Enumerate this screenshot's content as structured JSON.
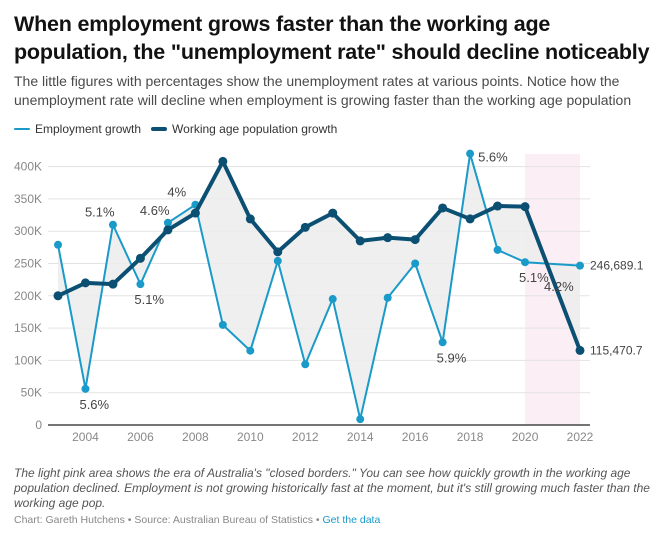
{
  "header": {
    "title": "When employment grows faster than the working age population, the \"unemployment rate\" should decline noticeably",
    "subtitle": "The little figures with percentages show the unemployment rates at various points. Notice how the unemployment rate will decline when employment is growing faster than the working age population"
  },
  "colors": {
    "employment": "#1a9ac9",
    "population": "#0b4f72",
    "gap_fill": "#ececec",
    "closed_borders": "#fbeef4",
    "grid": "#e3e3e3",
    "axis": "#222222",
    "tick_text": "#888888",
    "label_text": "#444444",
    "link": "#1a9ac9"
  },
  "chart_data": {
    "type": "line",
    "title": "When employment grows faster than the working age population, the \"unemployment rate\" should decline noticeably",
    "xlabel": "",
    "ylabel": "",
    "x": [
      2003,
      2004,
      2005,
      2006,
      2007,
      2008,
      2009,
      2010,
      2011,
      2012,
      2013,
      2014,
      2015,
      2016,
      2017,
      2018,
      2019,
      2020,
      2022
    ],
    "series": [
      {
        "name": "Employment growth",
        "values": [
          279000,
          56000,
          310000,
          218000,
          313000,
          341000,
          155000,
          115000,
          254000,
          94000,
          195000,
          9000,
          197000,
          250000,
          128000,
          420000,
          271000,
          252000,
          246689.1
        ]
      },
      {
        "name": "Working age population growth",
        "values": [
          200000,
          220000,
          218000,
          258000,
          302000,
          328000,
          408000,
          319000,
          268000,
          306000,
          328000,
          285000,
          290000,
          287000,
          336000,
          319000,
          339000,
          338000,
          115470.7
        ]
      }
    ],
    "ylim": [
      0,
      420000
    ],
    "xlim": [
      2003,
      2022
    ],
    "y_ticks": [
      0,
      50000,
      100000,
      150000,
      200000,
      250000,
      300000,
      350000,
      400000
    ],
    "y_tick_labels": [
      "0",
      "50K",
      "100K",
      "150K",
      "200K",
      "250K",
      "300K",
      "350K",
      "400K"
    ],
    "x_ticks": [
      2004,
      2006,
      2008,
      2010,
      2012,
      2014,
      2016,
      2018,
      2020,
      2022
    ],
    "x_tick_labels": [
      "2004",
      "2006",
      "2008",
      "2010",
      "2012",
      "2014",
      "2016",
      "2018",
      "2020",
      "2022"
    ],
    "grid": true,
    "legend": "top-left",
    "shaded_region": {
      "label": "closed borders",
      "x_start": 2020,
      "x_end": 2022
    },
    "annotations": [
      {
        "text": "5.1%",
        "x": 2005,
        "value": 310000,
        "position": "above-left"
      },
      {
        "text": "5.6%",
        "x": 2004,
        "value": 56000,
        "position": "below"
      },
      {
        "text": "5.1%",
        "x": 2006,
        "value": 218000,
        "position": "below"
      },
      {
        "text": "4.6%",
        "x": 2007,
        "value": 313000,
        "position": "above-left"
      },
      {
        "text": "4%",
        "x": 2008,
        "value": 341000,
        "position": "above-left"
      },
      {
        "text": "5.6%",
        "x": 2018,
        "value": 420000,
        "position": "right"
      },
      {
        "text": "5.9%",
        "x": 2017,
        "value": 128000,
        "position": "below"
      },
      {
        "text": "5.1%",
        "x": 2020,
        "value": 252000,
        "position": "below"
      },
      {
        "text": "4.2%",
        "x": 2022,
        "value": 220000,
        "position": "left"
      }
    ],
    "end_labels": [
      {
        "series": "Employment growth",
        "text": "246,689.1"
      },
      {
        "series": "Working age population growth",
        "text": "115,470.7"
      }
    ]
  },
  "legend": {
    "items": [
      {
        "label": "Employment growth"
      },
      {
        "label": "Working age population growth"
      }
    ]
  },
  "footer": {
    "notes": "The light pink area shows the era of Australia's \"closed borders.\" You can see how quickly growth in the working age population declined. Employment is not growing historically fast at the moment, but it's still growing much faster than the working age pop.",
    "credit": "Chart: Gareth Hutchens",
    "separator": " • ",
    "source": "Source: Australian Bureau of Statistics",
    "link_label": "Get the data"
  }
}
